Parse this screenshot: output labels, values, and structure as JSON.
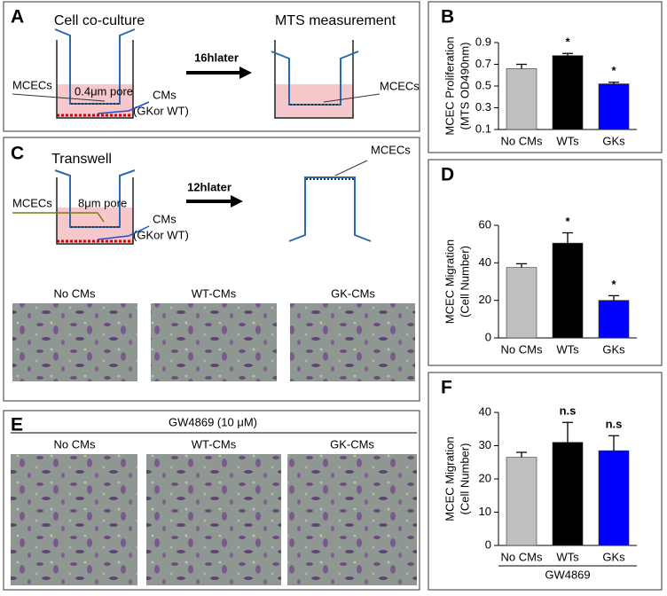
{
  "panel_A": {
    "letter": "A",
    "left_title": "Cell co-culture",
    "right_title": "MTS measurement",
    "arrow_label": "16hlater",
    "mcecs_left": "MCECs",
    "pore": "0.4μm pore",
    "cms": "CMs",
    "cms_source": "(GKor WT)",
    "mcecs_right": "MCECs"
  },
  "panel_C": {
    "letter": "C",
    "title": "Transwell",
    "arrow_label": "12hlater",
    "mcecs_left": "MCECs",
    "pore": "8μm pore",
    "cms": "CMs",
    "cms_source": "(GKor WT)",
    "mcecs_right": "MCECs",
    "captions": [
      "No CMs",
      "WT-CMs",
      "GK-CMs"
    ]
  },
  "panel_E": {
    "letter": "E",
    "treatment": "GW4869 (10 μM)",
    "captions": [
      "No CMs",
      "WT-CMs",
      "GK-CMs"
    ]
  },
  "chart_data": [
    {
      "type": "bar",
      "letter": "B",
      "y_label": [
        "MCEC Proliferation",
        "(MTS OD490nm)"
      ],
      "categories": [
        "No CMs",
        "WTs",
        "GKs"
      ],
      "values": [
        0.66,
        0.78,
        0.52
      ],
      "errors": [
        0.04,
        0.02,
        0.015
      ],
      "colors": [
        "#c0c0c0",
        "#000000",
        "#0000ff"
      ],
      "value_annotations": [
        null,
        "*",
        "*"
      ],
      "ylim": [
        0.1,
        0.9
      ],
      "yticks": [
        0.1,
        0.3,
        0.5,
        0.7,
        0.9
      ]
    },
    {
      "type": "bar",
      "letter": "D",
      "y_label": [
        "MCEC Migration",
        "(Cell Number)"
      ],
      "categories": [
        "No CMs",
        "WTs",
        "GKs"
      ],
      "values": [
        37.5,
        50.5,
        20
      ],
      "errors": [
        2,
        5.5,
        2.5
      ],
      "colors": [
        "#c0c0c0",
        "#000000",
        "#0000ff"
      ],
      "value_annotations": [
        null,
        "*",
        "*"
      ],
      "ylim": [
        0,
        60
      ],
      "yticks": [
        0,
        20,
        40,
        60
      ]
    },
    {
      "type": "bar",
      "letter": "F",
      "y_label": [
        "MCEC Migration",
        "(Cell Number)"
      ],
      "categories": [
        "No CMs",
        "WTs",
        "GKs"
      ],
      "values": [
        26.5,
        31,
        28.5
      ],
      "errors": [
        1.5,
        6,
        4.5
      ],
      "colors": [
        "#c0c0c0",
        "#000000",
        "#0000ff"
      ],
      "value_annotations": [
        null,
        "n.s",
        "n.s"
      ],
      "x_label": "GW4869",
      "ylim": [
        0,
        40
      ],
      "yticks": [
        0,
        10,
        20,
        30,
        40
      ]
    }
  ]
}
